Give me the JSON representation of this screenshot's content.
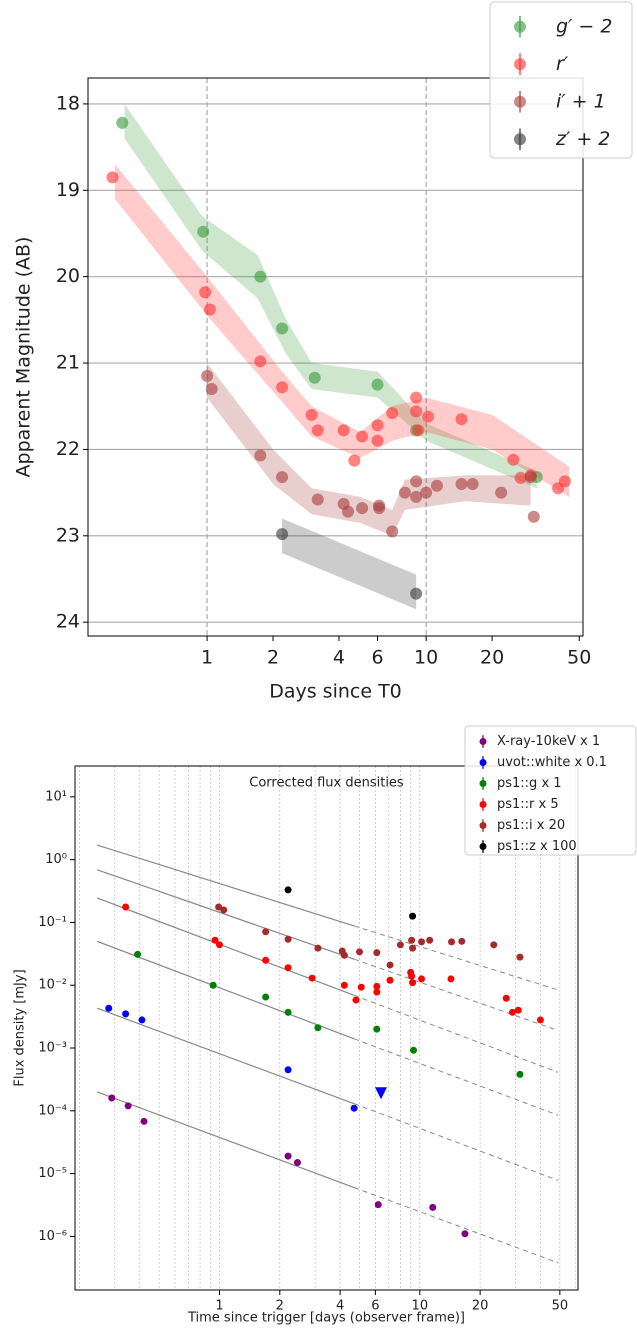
{
  "chart_data": [
    {
      "type": "scatter",
      "xlabel": "Days since T0",
      "ylabel": "Apparent Magnitude (AB)",
      "xscale": "log",
      "xlim": [
        0.286,
        52
      ],
      "xticks": [
        1,
        2,
        4,
        6,
        10,
        20,
        50
      ],
      "ylim": [
        24.16,
        17.7
      ],
      "yticks": [
        18,
        19,
        20,
        21,
        22,
        23,
        24
      ],
      "grid": true,
      "vlines": [
        1,
        10
      ],
      "legend": "upper right",
      "marker_opacity": 0.6,
      "series": [
        {
          "name": "g′ − 2",
          "color": "#3a9a3a",
          "x": [
            0.41,
            0.96,
            1.75,
            2.2,
            3.1,
            6.0,
            9.0,
            32
          ],
          "values": [
            18.22,
            19.48,
            20.0,
            20.6,
            21.17,
            21.25,
            21.78,
            22.32
          ],
          "band_x": [
            0.42,
            0.95,
            1.7,
            2.3,
            3.0,
            6,
            10,
            32
          ],
          "band_min": [
            18.0,
            19.3,
            19.75,
            20.5,
            21.0,
            21.1,
            21.7,
            22.25
          ],
          "band_max": [
            18.4,
            19.7,
            20.25,
            20.9,
            21.3,
            21.4,
            21.9,
            22.45
          ]
        },
        {
          "name": "r′",
          "color": "#ff3030",
          "x": [
            0.37,
            0.98,
            1.03,
            1.75,
            2.2,
            3.0,
            3.2,
            4.2,
            4.7,
            5.1,
            6.0,
            6.0,
            7.0,
            9.0,
            9.0,
            9.2,
            10.2,
            14.5,
            25,
            27,
            30,
            40,
            43
          ],
          "values": [
            18.85,
            20.18,
            20.38,
            20.98,
            21.28,
            21.6,
            21.78,
            21.78,
            22.13,
            21.85,
            21.72,
            21.9,
            21.58,
            21.4,
            21.56,
            21.78,
            21.62,
            21.65,
            22.12,
            22.33,
            22.3,
            22.45,
            22.37
          ],
          "band_x": [
            0.38,
            1.0,
            2.2,
            3.0,
            5,
            7,
            10,
            20,
            45
          ],
          "band_min": [
            18.7,
            20.0,
            21.1,
            21.5,
            21.8,
            21.5,
            21.4,
            21.6,
            22.2
          ],
          "band_max": [
            19.1,
            20.45,
            21.45,
            21.85,
            22.1,
            21.9,
            21.8,
            22.0,
            22.55
          ]
        },
        {
          "name": "i′ + 1",
          "color": "#a83c3c",
          "x": [
            1.0,
            1.05,
            1.75,
            2.2,
            3.2,
            4.2,
            4.4,
            5.1,
            6.1,
            6.1,
            7.0,
            8.0,
            9.0,
            9.0,
            10.0,
            11.2,
            14.5,
            16.3,
            22,
            30,
            31
          ],
          "values": [
            21.15,
            21.3,
            22.07,
            22.32,
            22.58,
            22.63,
            22.72,
            22.68,
            22.65,
            22.68,
            22.95,
            22.5,
            22.37,
            22.55,
            22.5,
            22.42,
            22.4,
            22.4,
            22.5,
            22.32,
            22.78
          ],
          "band_x": [
            1.0,
            2.0,
            3.0,
            5,
            7,
            8,
            15,
            30
          ],
          "band_min": [
            21.0,
            22.0,
            22.45,
            22.55,
            22.7,
            22.35,
            22.3,
            22.3
          ],
          "band_max": [
            21.4,
            22.4,
            22.75,
            22.85,
            23.0,
            22.7,
            22.6,
            22.65
          ]
        },
        {
          "name": "z′ + 2",
          "color": "#333333",
          "x": [
            2.2,
            9.0
          ],
          "values": [
            22.98,
            23.67
          ],
          "band_x": [
            2.2,
            9.0
          ],
          "band_min": [
            22.8,
            23.45
          ],
          "band_max": [
            23.2,
            23.85
          ]
        }
      ]
    },
    {
      "type": "scatter",
      "title": "Corrected flux densities",
      "xlabel": "Time since trigger [days (observer frame)]",
      "ylabel": "Flux density [mJy]",
      "xscale": "log",
      "yscale": "log",
      "xlim": [
        0.19,
        61.6
      ],
      "xticks": [
        1,
        2,
        4,
        6,
        10,
        20,
        50
      ],
      "xgrid": [
        0.2,
        0.3,
        0.4,
        0.5,
        0.6,
        0.7,
        0.8,
        0.9,
        1,
        2,
        3,
        4,
        5,
        6,
        7,
        8,
        9,
        10,
        20,
        30,
        40,
        50,
        60
      ],
      "ylim": [
        1.4e-07,
        31
      ],
      "yticks": [
        {
          "value": 10,
          "label": "10¹"
        },
        {
          "value": 1,
          "label": "10⁰"
        },
        {
          "value": 0.1,
          "label": "10⁻¹"
        },
        {
          "value": 0.01,
          "label": "10⁻²"
        },
        {
          "value": 0.001,
          "label": "10⁻³"
        },
        {
          "value": 0.0001,
          "label": "10⁻⁴"
        },
        {
          "value": 1e-05,
          "label": "10⁻⁵"
        },
        {
          "value": 1e-06,
          "label": "10⁻⁶"
        }
      ],
      "legend": "upper right",
      "model_color": "#888888",
      "model_lines": [
        {
          "x": [
            0.245,
            4.7,
            49
          ],
          "values": [
            1.71,
            0.088,
            0.0084
          ]
        },
        {
          "x": [
            0.245,
            4.7,
            49
          ],
          "values": [
            0.69,
            0.026,
            0.0019
          ]
        },
        {
          "x": [
            0.245,
            4.7,
            49
          ],
          "values": [
            0.245,
            0.0069,
            0.00041
          ]
        },
        {
          "x": [
            0.245,
            4.7,
            49
          ],
          "values": [
            0.05,
            0.0014,
            8.5e-05
          ]
        },
        {
          "x": [
            0.245,
            4.7,
            49
          ],
          "values": [
            0.0043,
            0.00013,
            7.8e-06
          ]
        },
        {
          "x": [
            0.245,
            4.7,
            49
          ],
          "values": [
            0.0002,
            6e-06,
            3.8e-07
          ]
        }
      ],
      "series": [
        {
          "name": "X-ray-10keV x 1",
          "color": "purple",
          "x": [
            0.29,
            0.35,
            0.42,
            2.2,
            2.45,
            6.2,
            11.6,
            16.8
          ],
          "values": [
            0.00016,
            0.00012,
            6.8e-05,
            1.9e-05,
            1.5e-05,
            3.2e-06,
            2.9e-06,
            1.1e-06
          ]
        },
        {
          "name": "uvot::white x 0.1",
          "color": "blue",
          "x": [
            0.28,
            0.34,
            0.41,
            2.2,
            4.7
          ],
          "values": [
            0.0043,
            0.0035,
            0.0028,
            0.00045,
            0.00011
          ],
          "limit_x": [
            6.4
          ],
          "limit_values": [
            0.00019
          ]
        },
        {
          "name": "ps1::g x 1",
          "color": "green",
          "x": [
            0.39,
            0.93,
            1.7,
            2.2,
            3.1,
            6.1,
            9.3,
            31.6
          ],
          "values": [
            0.031,
            0.01,
            0.0065,
            0.0037,
            0.0021,
            0.002,
            0.00092,
            0.00038
          ]
        },
        {
          "name": "ps1::r x 5",
          "color": "red",
          "x": [
            0.34,
            0.95,
            1.0,
            1.7,
            2.2,
            2.9,
            4.2,
            4.8,
            5.1,
            6.1,
            6.1,
            7.1,
            9.0,
            9.1,
            9.2,
            10.2,
            14.3,
            27,
            29,
            31,
            40
          ],
          "values": [
            0.176,
            0.052,
            0.044,
            0.025,
            0.019,
            0.013,
            0.01,
            0.0058,
            0.0093,
            0.0096,
            0.0078,
            0.012,
            0.016,
            0.014,
            0.011,
            0.0126,
            0.0126,
            0.0062,
            0.0037,
            0.004,
            0.0028
          ]
        },
        {
          "name": "ps1::i x 20",
          "color": "brown",
          "x": [
            0.99,
            1.05,
            1.7,
            2.2,
            3.1,
            4.1,
            4.2,
            5.0,
            6.1,
            7.1,
            8.0,
            9.1,
            9.2,
            10.2,
            11.2,
            14.4,
            16.2,
            23.4,
            31.6
          ],
          "values": [
            0.176,
            0.158,
            0.071,
            0.054,
            0.039,
            0.035,
            0.03,
            0.034,
            0.033,
            0.021,
            0.044,
            0.052,
            0.039,
            0.049,
            0.052,
            0.049,
            0.05,
            0.044,
            0.028
          ]
        },
        {
          "name": "ps1::z x 100",
          "color": "black",
          "x": [
            2.2,
            9.2
          ],
          "values": [
            0.33,
            0.126
          ]
        }
      ]
    }
  ]
}
